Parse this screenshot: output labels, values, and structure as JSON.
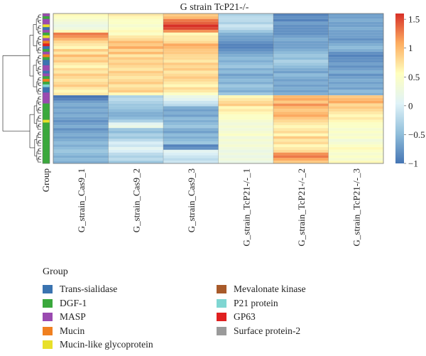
{
  "chart_data": {
    "type": "heatmap",
    "title": "G strain TcP21-/-",
    "columns": [
      "G_strain_Cas9_1",
      "G_strain_Cas9_2",
      "G_strain_Cas9_3",
      "G_strain_TcP21-/-_1",
      "G_strain_TcP21-/-_2",
      "G_strain_TcP21-/-_3"
    ],
    "row_annotation_label": "Group",
    "color_scale": {
      "min": -1,
      "max": 1.6,
      "ticks": [
        "1.5",
        "1",
        "0.5",
        "0",
        "−0.5",
        "−1"
      ],
      "tick_values": [
        1.5,
        1,
        0.5,
        0,
        -0.5,
        -1
      ],
      "colors": [
        "#4575b4",
        "#91bfdb",
        "#e0f3f8",
        "#ffffbf",
        "#fdae61",
        "#d73027"
      ]
    },
    "row_groups": [
      "MASP",
      "DGF-1",
      "MASP",
      "MASP",
      "Mucin-like glycoprotein",
      "Trans-sialidase",
      "MASP",
      "DGF-1",
      "Mucin-like glycoprotein",
      "MASP",
      "Mucin",
      "GP63",
      "Trans-sialidase",
      "DGF-1",
      "MASP",
      "Mucin",
      "DGF-1",
      "Trans-sialidase",
      "Trans-sialidase",
      "MASP",
      "MASP",
      "Trans-sialidase",
      "MASP",
      "DGF-1",
      "Mucin",
      "DGF-1",
      "P21 protein",
      "Trans-sialidase",
      "Trans-sialidase",
      "MASP",
      "MASP",
      "MASP",
      "MASP",
      "DGF-1",
      "DGF-1",
      "DGF-1",
      "DGF-1",
      "DGF-1",
      "DGF-1",
      "Mucin-like glycoprotein",
      "DGF-1",
      "DGF-1",
      "DGF-1",
      "DGF-1",
      "DGF-1",
      "DGF-1",
      "DGF-1",
      "DGF-1",
      "DGF-1",
      "DGF-1",
      "DGF-1",
      "DGF-1",
      "DGF-1",
      "DGF-1",
      "DGF-1"
    ],
    "values": [
      [
        0.6,
        0.7,
        0.9,
        -0.3,
        -0.9,
        -0.7
      ],
      [
        0.5,
        0.6,
        1.0,
        -0.2,
        -0.8,
        -0.7
      ],
      [
        0.4,
        0.5,
        1.3,
        -0.2,
        -0.9,
        -0.6
      ],
      [
        0.3,
        0.5,
        1.4,
        -0.3,
        -0.7,
        -0.7
      ],
      [
        0.2,
        0.4,
        1.6,
        -0.1,
        -0.8,
        -0.7
      ],
      [
        0.3,
        0.5,
        1.5,
        -0.2,
        -0.8,
        -0.6
      ],
      [
        0.6,
        0.6,
        1.2,
        -0.4,
        -0.8,
        -0.7
      ],
      [
        1.3,
        0.5,
        0.6,
        -0.6,
        -0.8,
        -0.7
      ],
      [
        1.2,
        0.7,
        0.7,
        -0.7,
        -0.7,
        -0.7
      ],
      [
        1.0,
        0.8,
        0.7,
        -0.7,
        -0.6,
        -0.8
      ],
      [
        0.8,
        1.0,
        0.8,
        -0.8,
        -0.7,
        -0.7
      ],
      [
        0.7,
        0.9,
        1.1,
        -0.9,
        -0.7,
        -0.6
      ],
      [
        0.6,
        1.1,
        1.0,
        -0.9,
        -0.7,
        -0.5
      ],
      [
        0.9,
        0.8,
        0.9,
        -0.8,
        -0.6,
        -0.6
      ],
      [
        0.7,
        1.0,
        0.9,
        -0.7,
        -0.5,
        -0.8
      ],
      [
        1.0,
        0.7,
        0.8,
        -0.6,
        -0.4,
        -0.9
      ],
      [
        0.8,
        0.9,
        0.8,
        -0.5,
        -0.5,
        -0.8
      ],
      [
        0.9,
        0.8,
        0.7,
        -0.6,
        -0.3,
        -0.8
      ],
      [
        0.7,
        0.9,
        0.9,
        -0.5,
        -0.4,
        -0.7
      ],
      [
        0.6,
        0.8,
        0.8,
        -0.4,
        -0.5,
        -0.8
      ],
      [
        0.8,
        0.7,
        0.9,
        -0.6,
        -0.6,
        -0.7
      ],
      [
        0.7,
        0.9,
        0.7,
        -0.5,
        -0.7,
        -0.6
      ],
      [
        0.9,
        0.8,
        0.8,
        -0.7,
        -0.5,
        -0.8
      ],
      [
        0.8,
        0.7,
        0.9,
        -0.6,
        -0.6,
        -0.7
      ],
      [
        0.7,
        0.8,
        0.8,
        -0.5,
        -0.7,
        -0.6
      ],
      [
        0.8,
        0.9,
        0.7,
        -0.6,
        -0.6,
        -0.7
      ],
      [
        0.9,
        0.7,
        0.6,
        -0.4,
        -0.7,
        -0.6
      ],
      [
        0.7,
        0.8,
        0.8,
        -0.5,
        -0.6,
        -0.7
      ],
      [
        0.6,
        0.9,
        0.7,
        -0.6,
        -0.7,
        -0.5
      ],
      [
        0.7,
        0.6,
        0.5,
        -0.4,
        -0.6,
        -0.6
      ],
      [
        -1.0,
        -0.3,
        0.2,
        0.6,
        1.0,
        0.9
      ],
      [
        -0.9,
        -0.2,
        0.1,
        0.7,
        1.1,
        1.0
      ],
      [
        -0.7,
        -0.3,
        -0.1,
        0.8,
        0.9,
        1.1
      ],
      [
        -0.6,
        -0.4,
        -0.2,
        0.9,
        1.2,
        0.8
      ],
      [
        -0.7,
        -0.4,
        -0.6,
        0.6,
        1.0,
        0.9
      ],
      [
        -0.6,
        -0.5,
        -0.7,
        0.7,
        0.9,
        0.8
      ],
      [
        -0.7,
        -0.6,
        -0.6,
        0.6,
        1.0,
        0.7
      ],
      [
        -0.6,
        -0.6,
        -0.7,
        0.5,
        1.1,
        0.6
      ],
      [
        -0.7,
        -0.5,
        -0.5,
        0.5,
        0.9,
        0.7
      ],
      [
        -0.8,
        -0.3,
        -0.6,
        0.4,
        0.8,
        0.6
      ],
      [
        -0.7,
        0.1,
        -0.5,
        0.3,
        0.7,
        0.5
      ],
      [
        -0.6,
        0.2,
        -0.4,
        0.4,
        0.6,
        0.5
      ],
      [
        -0.8,
        -0.4,
        -0.6,
        0.3,
        0.7,
        0.4
      ],
      [
        -0.7,
        -0.5,
        -0.7,
        0.4,
        0.8,
        0.5
      ],
      [
        -0.6,
        -0.3,
        -0.5,
        0.5,
        0.6,
        0.4
      ],
      [
        -0.7,
        -0.4,
        -0.6,
        0.3,
        0.9,
        0.5
      ],
      [
        -0.6,
        -0.2,
        -0.5,
        0.4,
        0.7,
        0.3
      ],
      [
        -0.5,
        0.0,
        -0.4,
        0.3,
        0.8,
        0.4
      ],
      [
        -0.6,
        -0.1,
        -0.9,
        0.4,
        0.6,
        0.5
      ],
      [
        -0.5,
        0.1,
        -0.8,
        0.3,
        0.7,
        0.6
      ],
      [
        -0.4,
        0.0,
        0.1,
        0.2,
        0.8,
        0.5
      ],
      [
        -0.5,
        -0.2,
        0.0,
        0.3,
        1.2,
        0.4
      ],
      [
        -0.6,
        -0.3,
        -0.1,
        0.2,
        1.3,
        0.5
      ],
      [
        -0.5,
        -0.2,
        -0.2,
        0.3,
        1.1,
        0.4
      ],
      [
        -0.6,
        -0.4,
        -0.1,
        0.2,
        0.9,
        0.6
      ]
    ]
  },
  "legend": {
    "title": "Group",
    "items": [
      {
        "label": "Trans-sialidase",
        "color": "#3a73b0"
      },
      {
        "label": "DGF-1",
        "color": "#3aa83c"
      },
      {
        "label": "MASP",
        "color": "#9a4ab0"
      },
      {
        "label": "Mucin",
        "color": "#f08020"
      },
      {
        "label": "Mucin-like glycoprotein",
        "color": "#e8e02a"
      },
      {
        "label": "Mevalonate kinase",
        "color": "#a85a2a"
      },
      {
        "label": "P21 protein",
        "color": "#7fd6d2"
      },
      {
        "label": "GP63",
        "color": "#e02020"
      },
      {
        "label": "Surface protein-2",
        "color": "#9a9a9a"
      }
    ]
  }
}
